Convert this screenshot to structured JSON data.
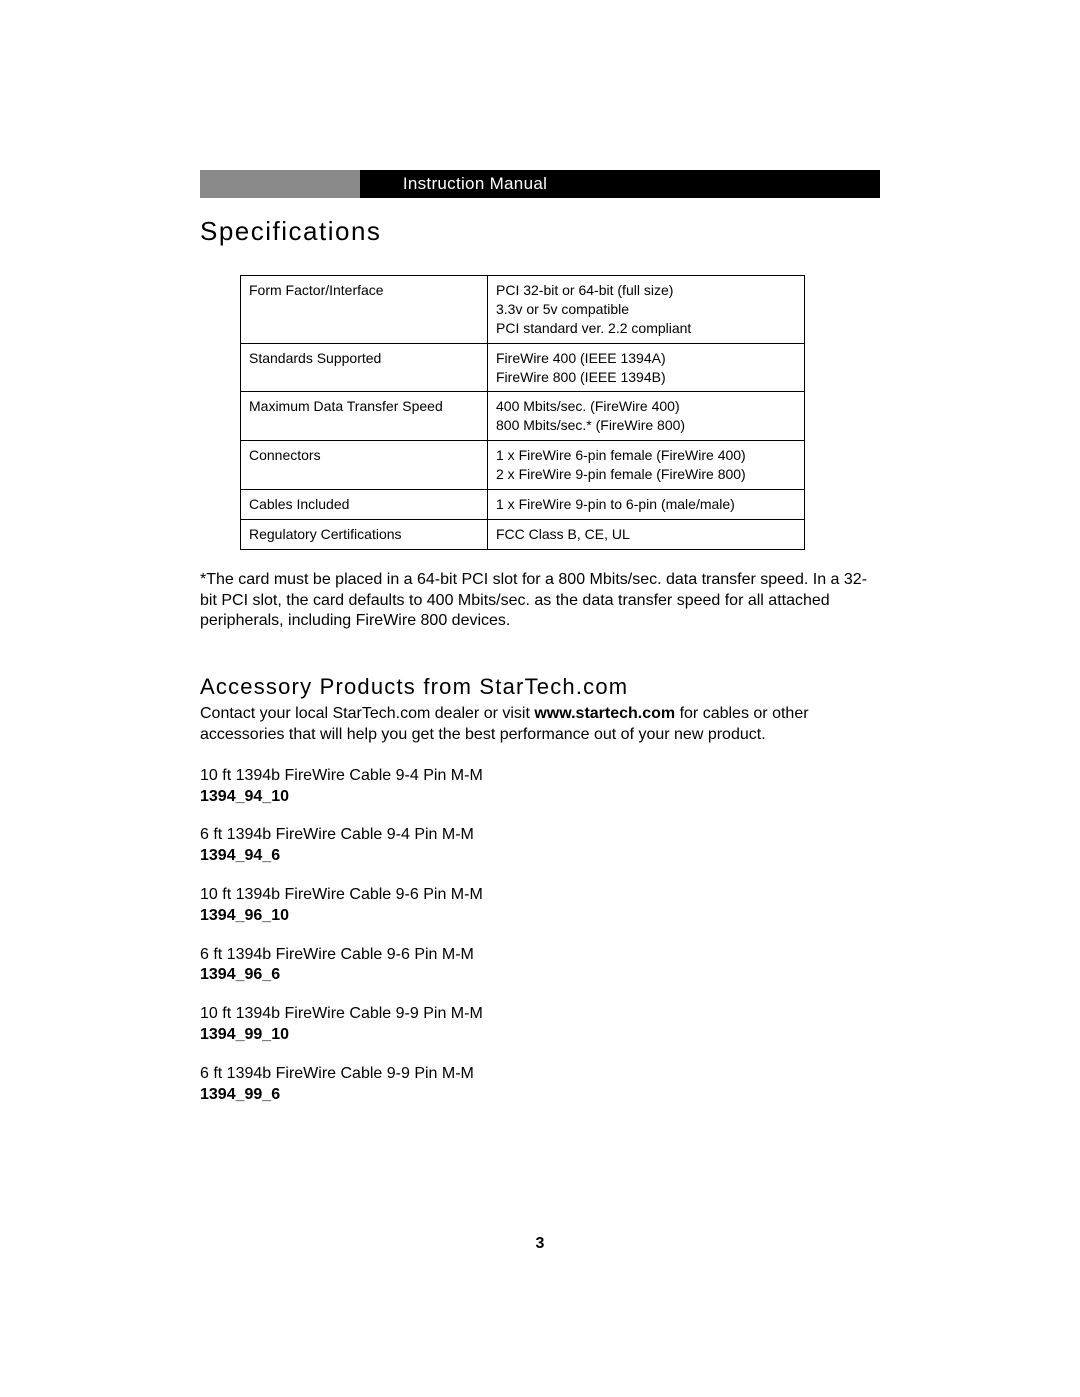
{
  "header": {
    "title": "Instruction Manual"
  },
  "sections": {
    "spec_heading": "Specifications",
    "acc_heading": "Accessory Products from StarTech.com"
  },
  "spec_table": {
    "rows": [
      {
        "key": "Form Factor/Interface",
        "vals": [
          "PCI 32-bit or 64-bit (full size)",
          "3.3v or 5v compatible",
          "PCI standard ver. 2.2 compliant"
        ]
      },
      {
        "key": "Standards Supported",
        "vals": [
          "FireWire 400 (IEEE 1394A)",
          "FireWire 800 (IEEE 1394B)"
        ]
      },
      {
        "key": "Maximum Data Transfer Speed",
        "vals": [
          "400 Mbits/sec. (FireWire 400)",
          "800 Mbits/sec.* (FireWire 800)"
        ]
      },
      {
        "key": "Connectors",
        "vals": [
          "1 x FireWire 6-pin female (FireWire 400)",
          "2 x FireWire 9-pin female (FireWire 800)"
        ]
      },
      {
        "key": "Cables Included",
        "vals": [
          "1 x FireWire 9-pin to 6-pin (male/male)"
        ]
      },
      {
        "key": "Regulatory Certifications",
        "vals": [
          "FCC Class B, CE, UL"
        ]
      }
    ]
  },
  "footnote": "*The card must be placed in a 64-bit PCI slot for a 800 Mbits/sec. data transfer speed. In a 32-bit PCI slot, the card defaults to 400 Mbits/sec. as the data transfer speed for all attached peripherals, including FireWire 800 devices.",
  "accessories": {
    "intro_before": "Contact your local StarTech.com dealer or visit ",
    "intro_bold": "www.startech.com",
    "intro_after": " for cables or other accessories that will help you get the best performance out of your new product.",
    "products": [
      {
        "desc": "10 ft 1394b FireWire Cable 9-4 Pin M-M",
        "code": "1394_94_10"
      },
      {
        "desc": "6 ft 1394b FireWire Cable 9-4 Pin M-M",
        "code": "1394_94_6"
      },
      {
        "desc": "10 ft 1394b FireWire Cable 9-6 Pin M-M",
        "code": "1394_96_10"
      },
      {
        "desc": "6 ft 1394b FireWire Cable 9-6 Pin M-M",
        "code": "1394_96_6"
      },
      {
        "desc": "10 ft 1394b FireWire Cable 9-9 Pin M-M",
        "code": "1394_99_10"
      },
      {
        "desc": "6 ft 1394b FireWire Cable 9-9 Pin M-M",
        "code": "1394_99_6"
      }
    ]
  },
  "page_number": "3"
}
